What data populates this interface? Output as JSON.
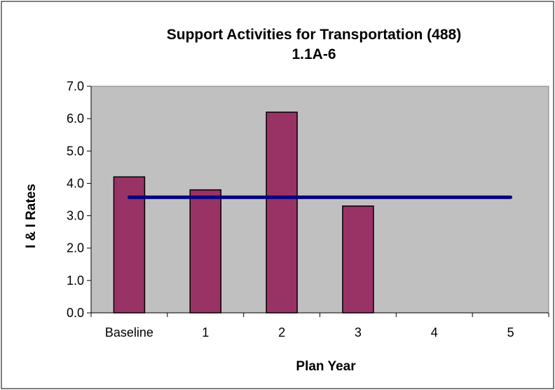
{
  "chart_data": {
    "type": "bar",
    "title": "Support Activities for Transportation (488)",
    "subtitle": "1.1A-6",
    "xlabel": "Plan Year",
    "ylabel": "I & I Rates",
    "categories": [
      "Baseline",
      "1",
      "2",
      "3",
      "4",
      "5"
    ],
    "series": [
      {
        "type": "bar",
        "values": [
          4.2,
          3.8,
          6.2,
          3.3,
          null,
          null
        ],
        "color": "#993366"
      },
      {
        "type": "line",
        "values": [
          3.57,
          3.57,
          3.57,
          3.57,
          3.57,
          3.57
        ],
        "color": "#000080"
      }
    ],
    "ylim": [
      0,
      7
    ],
    "yticks": [
      "0.0",
      "1.0",
      "2.0",
      "3.0",
      "4.0",
      "5.0",
      "6.0",
      "7.0"
    ],
    "plot_background": "#c0c0c0",
    "grid": false,
    "legend": "none"
  }
}
